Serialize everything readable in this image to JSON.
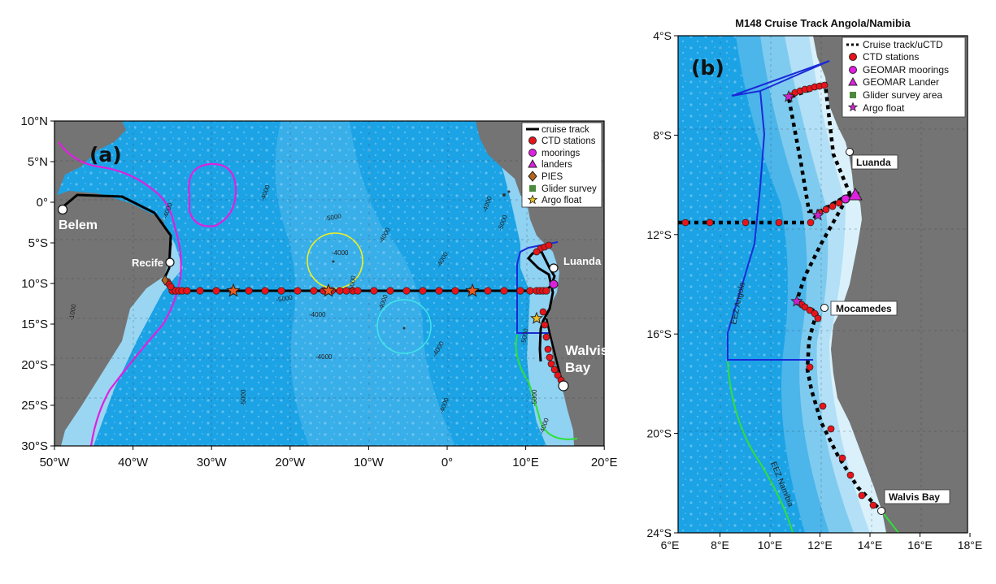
{
  "panel_a": {
    "label": "(a)",
    "lat_ticks": [
      "10°N",
      "5°N",
      "0°",
      "5°S",
      "10°S",
      "15°S",
      "20°S",
      "25°S",
      "30°S"
    ],
    "lon_ticks": [
      "50°W",
      "40°W",
      "30°W",
      "20°W",
      "10°W",
      "0°",
      "10°E",
      "20°E"
    ],
    "places": {
      "belem": "Belem",
      "recife": "Recife",
      "luanda": "Luanda",
      "walvis_line1": "Walvis",
      "walvis_line2": "Bay"
    },
    "contours": [
      "-4000",
      "-4000",
      "-5000",
      "-4000",
      "-4000",
      "-5000",
      "-5000",
      "-4000",
      "-5000",
      "-4000",
      "-4000",
      "-4000",
      "-5000",
      "-4000",
      "-5000",
      "-5000",
      "-4000",
      "-4000",
      "-1000",
      "-4000"
    ],
    "legend": [
      "cruise track",
      "CTD stations",
      "moorings",
      "landers",
      "PIES",
      "Glider survey",
      "Argo float"
    ]
  },
  "panel_b": {
    "label": "(b)",
    "title": "M148 Cruise Track Angola/Namibia",
    "lat_ticks": [
      "4°S",
      "8°S",
      "12°S",
      "16°S",
      "20°S",
      "24°S"
    ],
    "lon_ticks": [
      "6°E",
      "8°E",
      "10°E",
      "12°E",
      "14°E",
      "16°E",
      "18°E"
    ],
    "places": {
      "luanda": "Luanda",
      "mocamedes": "Mocamedes",
      "walvis": "Walvis Bay"
    },
    "eez": {
      "angola": "EEZ Angola",
      "namibia": "EEZ Namibia"
    },
    "legend": [
      "Cruise track/uCTD",
      "CTD stations",
      "GEOMAR moorings",
      "GEOMAR Lander",
      "Glider survey area",
      "Argo float"
    ]
  },
  "colors": {
    "ocean_deep": "#1ba3e6",
    "ocean_mid": "#5ec0ee",
    "ocean_shelf": "#bfe6f7",
    "land": "#747474",
    "ctd": "#e8141a",
    "mooring": "#e020e0",
    "pies": "#b4661e",
    "glider": "#4a8a3a",
    "eez_brazil": "#e020e0",
    "eez_angola": "#1a2ad8",
    "eez_namibia": "#2ee03a",
    "argo_a": "#f05a1a",
    "argo_b": "#cc22cc",
    "yellow_circle": "#f0f020",
    "cyan_circle": "#40e8e8"
  }
}
